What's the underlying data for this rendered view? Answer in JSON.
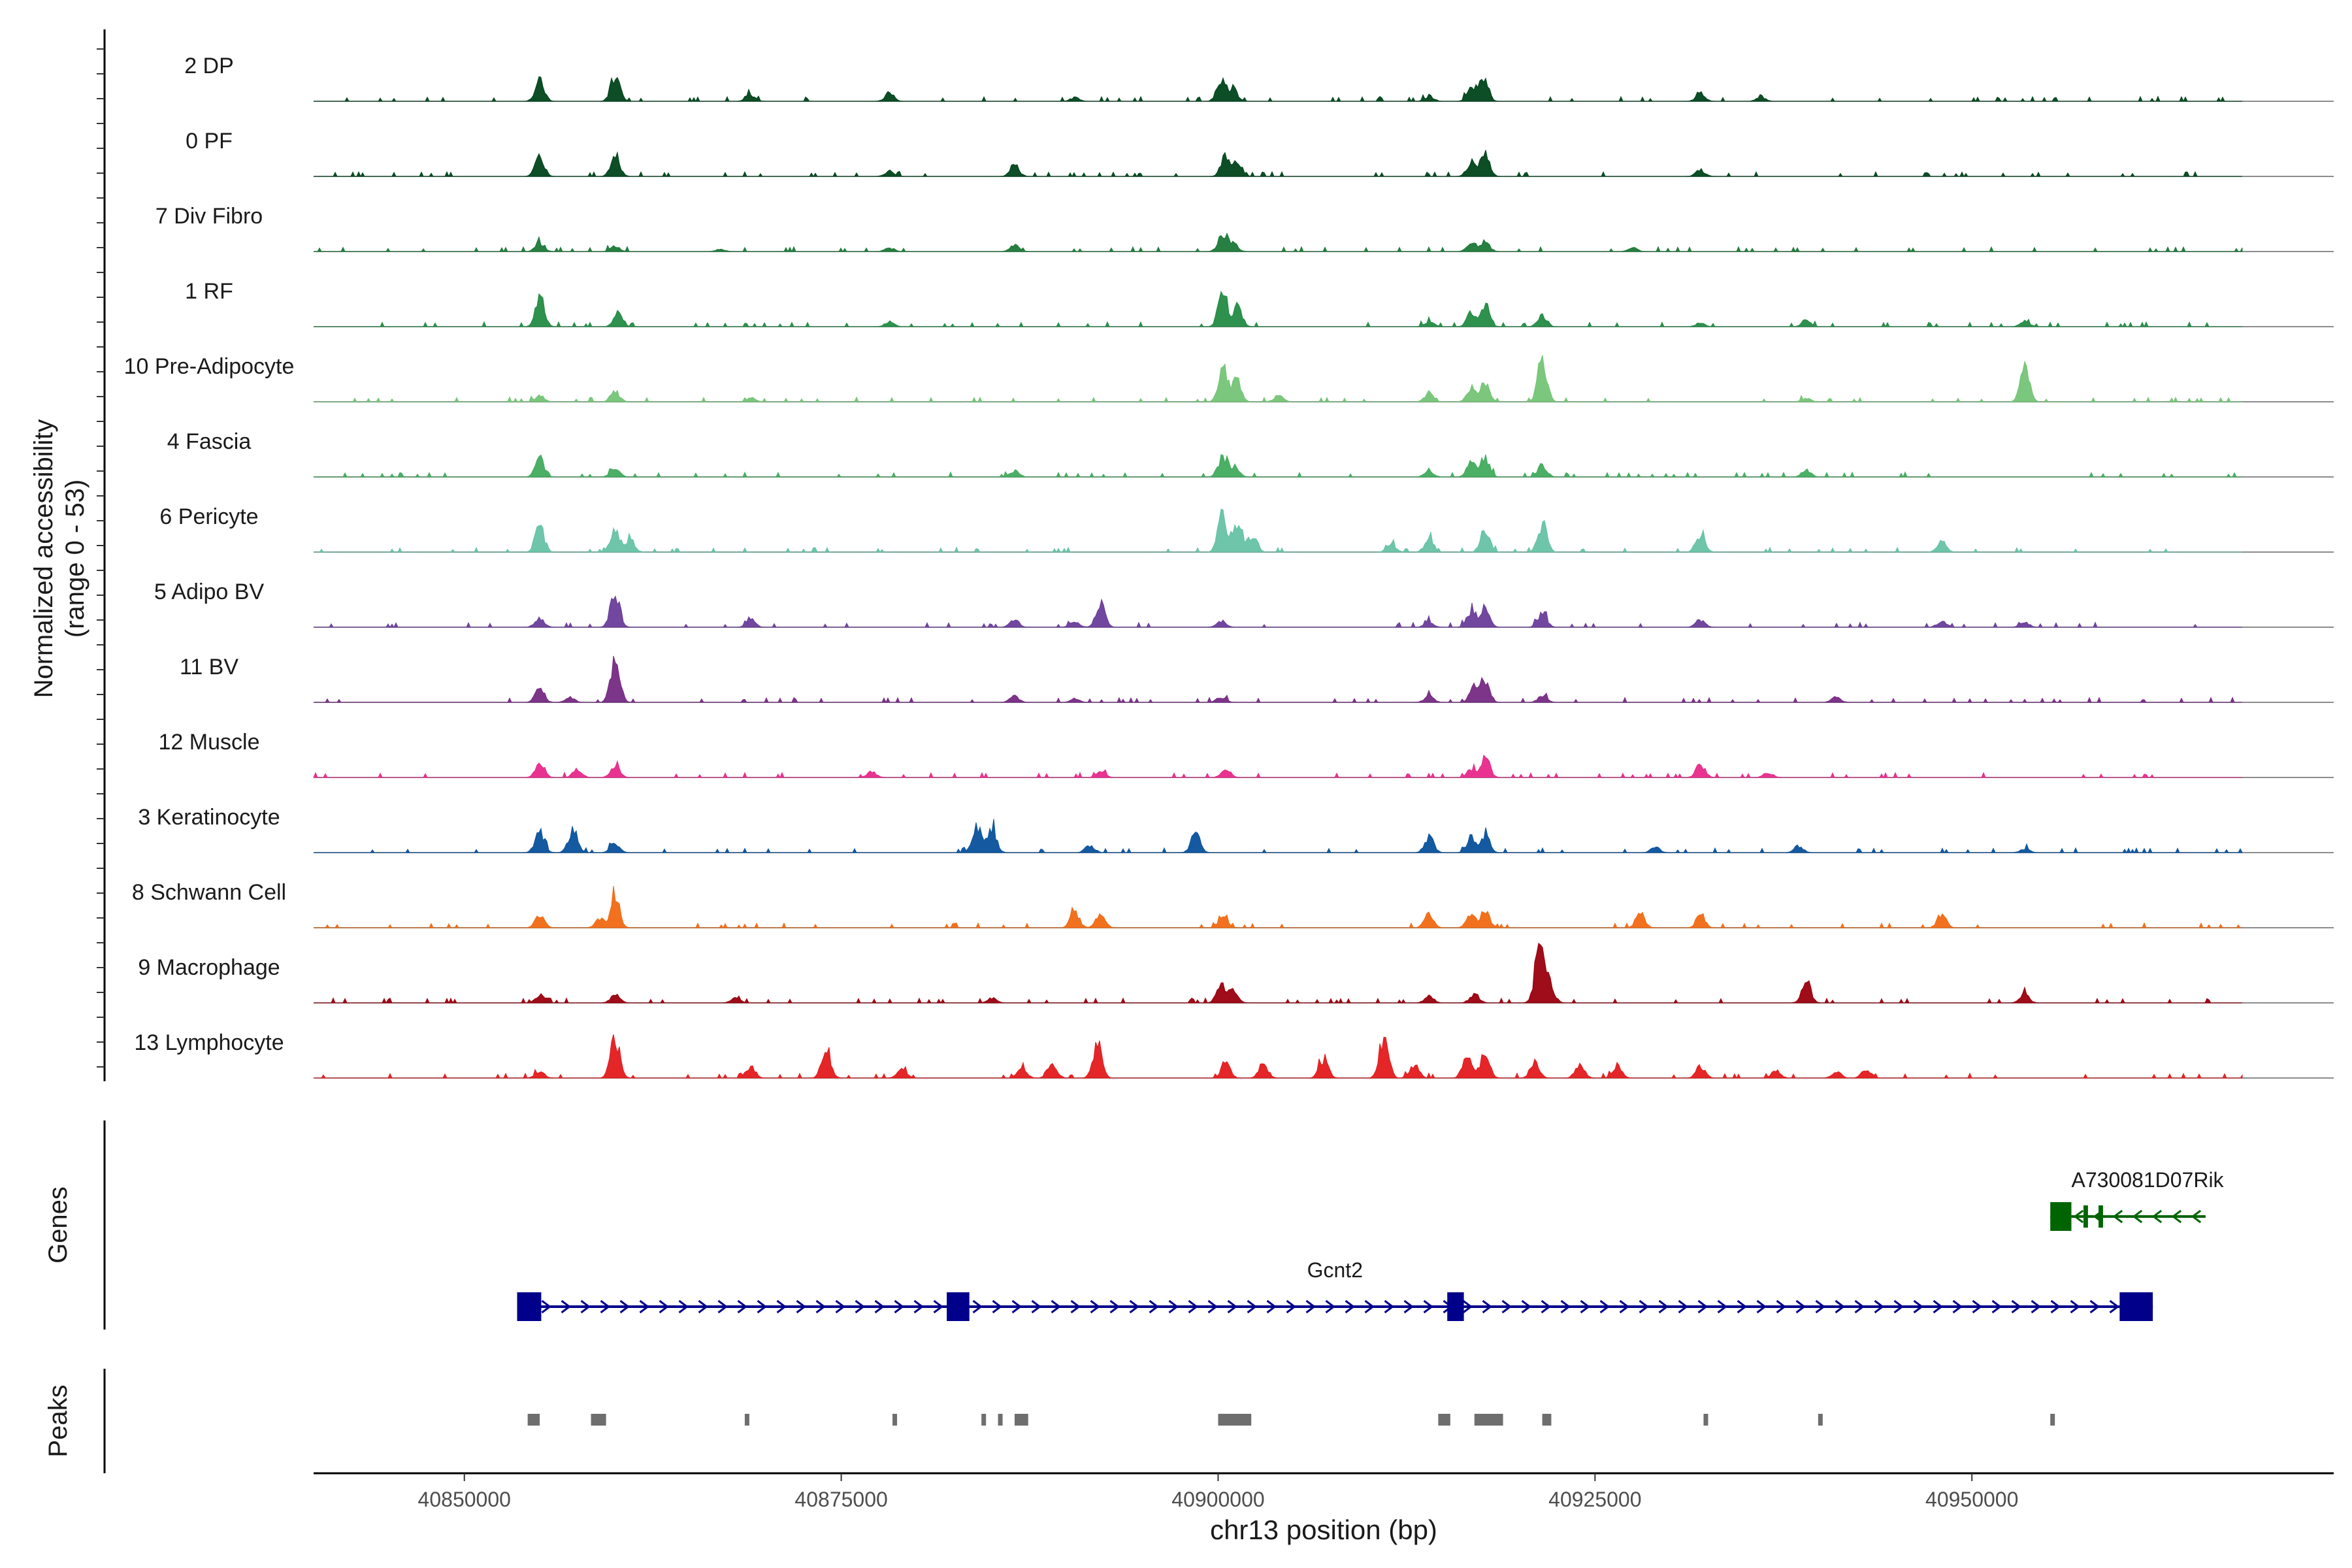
{
  "chart_data": {
    "type": "area",
    "title": "",
    "chromosome": "chr13",
    "xlabel": "chr13 position (bp)",
    "xlim": [
      40840000,
      40974000
    ],
    "xticks": [
      40850000,
      40875000,
      40900000,
      40925000,
      40950000
    ],
    "xtick_labels": [
      "40850000",
      "40875000",
      "40900000",
      "40925000",
      "40950000"
    ],
    "coverage_ylabel_line1": "Normalized accessibility",
    "coverage_ylabel_line2": "(range 0 - 53)",
    "y_range": [
      0,
      53
    ],
    "genes_label": "Genes",
    "peaks_label": "Peaks",
    "series": [
      {
        "name": "2 DP",
        "color": "#00441b",
        "peaks": [
          [
            40855000,
            32
          ],
          [
            40860000,
            40
          ],
          [
            40869000,
            10
          ],
          [
            40878200,
            13
          ],
          [
            40890500,
            6
          ],
          [
            40900200,
            34
          ],
          [
            40901000,
            20
          ],
          [
            40914000,
            8
          ],
          [
            40916800,
            18
          ],
          [
            40917600,
            42
          ],
          [
            40932000,
            12
          ],
          [
            40936000,
            6
          ]
        ]
      },
      {
        "name": "0 PF",
        "color": "#00441b",
        "peaks": [
          [
            40855000,
            30
          ],
          [
            40860000,
            34
          ],
          [
            40878200,
            8
          ],
          [
            40886500,
            18
          ],
          [
            40900500,
            32
          ],
          [
            40901300,
            22
          ],
          [
            40916800,
            22
          ],
          [
            40917700,
            34
          ],
          [
            40932000,
            10
          ]
        ]
      },
      {
        "name": "7 Div Fibro",
        "color": "#1b7837",
        "peaks": [
          [
            40855000,
            14
          ],
          [
            40860000,
            8
          ],
          [
            40867000,
            4
          ],
          [
            40878200,
            6
          ],
          [
            40886500,
            10
          ],
          [
            40900300,
            28
          ],
          [
            40901000,
            12
          ],
          [
            40916800,
            12
          ],
          [
            40917700,
            16
          ],
          [
            40927500,
            6
          ]
        ]
      },
      {
        "name": "1 RF",
        "color": "#238b45",
        "peaks": [
          [
            40855000,
            46
          ],
          [
            40860200,
            24
          ],
          [
            40878200,
            8
          ],
          [
            40900300,
            58
          ],
          [
            40901300,
            32
          ],
          [
            40914000,
            8
          ],
          [
            40916800,
            22
          ],
          [
            40917700,
            32
          ],
          [
            40921500,
            18
          ],
          [
            40932000,
            6
          ],
          [
            40939000,
            10
          ],
          [
            40953500,
            10
          ]
        ]
      },
      {
        "name": "10 Pre-Adipocyte",
        "color": "#74c476",
        "peaks": [
          [
            40855000,
            10
          ],
          [
            40860000,
            16
          ],
          [
            40869000,
            6
          ],
          [
            40900300,
            52
          ],
          [
            40901200,
            36
          ],
          [
            40904000,
            10
          ],
          [
            40914000,
            12
          ],
          [
            40916800,
            22
          ],
          [
            40917700,
            28
          ],
          [
            40921500,
            68
          ],
          [
            40953500,
            58
          ],
          [
            40939000,
            6
          ]
        ]
      },
      {
        "name": "4 Fascia",
        "color": "#41ab5d",
        "peaks": [
          [
            40855000,
            30
          ],
          [
            40860000,
            14
          ],
          [
            40886500,
            10
          ],
          [
            40900300,
            32
          ],
          [
            40901100,
            18
          ],
          [
            40914000,
            10
          ],
          [
            40916800,
            22
          ],
          [
            40917700,
            32
          ],
          [
            40921500,
            20
          ],
          [
            40939000,
            12
          ]
        ]
      },
      {
        "name": "6 Pericyte",
        "color": "#66c2a4",
        "peaks": [
          [
            40855000,
            40
          ],
          [
            40860000,
            36
          ],
          [
            40861000,
            20
          ],
          [
            40900300,
            58
          ],
          [
            40901300,
            48
          ],
          [
            40902300,
            26
          ],
          [
            40911500,
            14
          ],
          [
            40914000,
            22
          ],
          [
            40917700,
            36
          ],
          [
            40921500,
            44
          ],
          [
            40932000,
            28
          ],
          [
            40948000,
            16
          ]
        ]
      },
      {
        "name": "5 Adipo BV",
        "color": "#6a3d9a",
        "peaks": [
          [
            40855000,
            16
          ],
          [
            40860000,
            58
          ],
          [
            40869000,
            12
          ],
          [
            40886500,
            12
          ],
          [
            40890500,
            10
          ],
          [
            40892200,
            36
          ],
          [
            40900200,
            10
          ],
          [
            40914000,
            8
          ],
          [
            40916800,
            26
          ],
          [
            40917700,
            30
          ],
          [
            40921500,
            22
          ],
          [
            40932000,
            12
          ],
          [
            40948000,
            10
          ],
          [
            40953500,
            8
          ]
        ]
      },
      {
        "name": "11 BV",
        "color": "#762a83",
        "peaks": [
          [
            40855000,
            22
          ],
          [
            40860000,
            74
          ],
          [
            40857000,
            8
          ],
          [
            40886500,
            10
          ],
          [
            40890500,
            6
          ],
          [
            40900200,
            8
          ],
          [
            40914000,
            10
          ],
          [
            40917000,
            28
          ],
          [
            40917700,
            36
          ],
          [
            40921500,
            10
          ],
          [
            40941000,
            8
          ]
        ]
      },
      {
        "name": "12 Muscle",
        "color": "#e7298a",
        "peaks": [
          [
            40855000,
            24
          ],
          [
            40857500,
            12
          ],
          [
            40860000,
            20
          ],
          [
            40877000,
            10
          ],
          [
            40892200,
            10
          ],
          [
            40900500,
            14
          ],
          [
            40916800,
            12
          ],
          [
            40917700,
            32
          ],
          [
            40932000,
            20
          ],
          [
            40936500,
            8
          ]
        ]
      },
      {
        "name": "3 Keratinocyte",
        "color": "#08519c",
        "peaks": [
          [
            40855000,
            34
          ],
          [
            40857200,
            36
          ],
          [
            40860000,
            16
          ],
          [
            40884000,
            44
          ],
          [
            40885000,
            40
          ],
          [
            40891500,
            12
          ],
          [
            40898500,
            30
          ],
          [
            40914000,
            24
          ],
          [
            40916800,
            24
          ],
          [
            40917700,
            26
          ],
          [
            40929000,
            8
          ],
          [
            40938500,
            10
          ],
          [
            40953500,
            6
          ]
        ]
      },
      {
        "name": "8 Schwann Cell",
        "color": "#f16913",
        "peaks": [
          [
            40855000,
            18
          ],
          [
            40859000,
            14
          ],
          [
            40860000,
            50
          ],
          [
            40890500,
            24
          ],
          [
            40892200,
            20
          ],
          [
            40900300,
            16
          ],
          [
            40914000,
            22
          ],
          [
            40916800,
            22
          ],
          [
            40917700,
            24
          ],
          [
            40928000,
            22
          ],
          [
            40932000,
            18
          ],
          [
            40948000,
            20
          ]
        ]
      },
      {
        "name": "9 Macrophage",
        "color": "#99000d",
        "peaks": [
          [
            40855000,
            12
          ],
          [
            40860000,
            14
          ],
          [
            40868000,
            8
          ],
          [
            40885000,
            8
          ],
          [
            40900200,
            28
          ],
          [
            40901000,
            18
          ],
          [
            40914000,
            10
          ],
          [
            40917000,
            14
          ],
          [
            40921300,
            88
          ],
          [
            40922000,
            30
          ],
          [
            40939000,
            34
          ],
          [
            40953500,
            14
          ]
        ]
      },
      {
        "name": "13 Lymphocyte",
        "color": "#e31a1c",
        "peaks": [
          [
            40855000,
            10
          ],
          [
            40860000,
            62
          ],
          [
            40869000,
            18
          ],
          [
            40874000,
            48
          ],
          [
            40879000,
            16
          ],
          [
            40887000,
            18
          ],
          [
            40889000,
            26
          ],
          [
            40892000,
            52
          ],
          [
            40900500,
            24
          ],
          [
            40903000,
            22
          ],
          [
            40907000,
            30
          ],
          [
            40911000,
            66
          ],
          [
            40913000,
            22
          ],
          [
            40916500,
            34
          ],
          [
            40917700,
            40
          ],
          [
            40921000,
            24
          ],
          [
            40924000,
            22
          ],
          [
            40926500,
            20
          ],
          [
            40932000,
            18
          ],
          [
            40937000,
            12
          ],
          [
            40941000,
            10
          ],
          [
            40943000,
            14
          ]
        ]
      }
    ],
    "genes": [
      {
        "name": "A730081D07Rik",
        "color": "#006400",
        "strand": "-",
        "start": 40955200,
        "end": 40965500,
        "exons": [
          [
            40955200,
            40956600
          ],
          [
            40957400,
            40957700
          ],
          [
            40958400,
            40958700
          ]
        ]
      },
      {
        "name": "Gcnt2",
        "color": "#00008b",
        "strand": "+",
        "start": 40853500,
        "end": 40962000,
        "exons": [
          [
            40853500,
            40855100
          ],
          [
            40882000,
            40883500
          ],
          [
            40915200,
            40916300
          ],
          [
            40959800,
            40962000
          ]
        ]
      }
    ],
    "peaks": [
      [
        40854200,
        40855000
      ],
      [
        40858400,
        40859400
      ],
      [
        40868600,
        40868900
      ],
      [
        40878400,
        40878700
      ],
      [
        40884300,
        40884500
      ],
      [
        40885400,
        40885600
      ],
      [
        40886500,
        40887400
      ],
      [
        40900000,
        40902200
      ],
      [
        40914600,
        40915400
      ],
      [
        40917000,
        40918900
      ],
      [
        40921500,
        40922100
      ],
      [
        40932200,
        40932500
      ],
      [
        40939800,
        40940100
      ],
      [
        40955200,
        40955500
      ]
    ]
  }
}
